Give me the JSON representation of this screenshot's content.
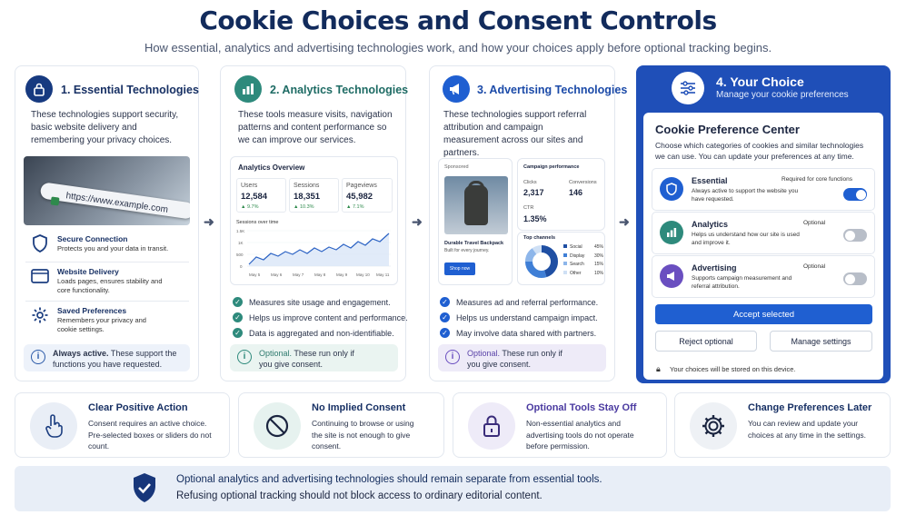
{
  "title": "Cookie Choices and Consent Controls",
  "subtitle": "How essential, analytics and advertising technologies work, and how your choices apply before optional tracking begins.",
  "col1": {
    "heading": "1. Essential Technologies",
    "desc": "These technologies support security, basic website delivery and remembering your privacy choices.",
    "url": "https://www.example.com",
    "features": [
      {
        "title": "Secure Connection",
        "desc": "Protects you and your data in transit."
      },
      {
        "title": "Website Delivery",
        "desc": "Loads pages, ensures stability and core functionality."
      },
      {
        "title": "Saved Preferences",
        "desc": "Remembers your privacy and cookie settings."
      }
    ],
    "info_bold": "Always active.",
    "info_text": " These support the functions you have requested."
  },
  "col2": {
    "heading": "2. Analytics Technologies",
    "desc": "These tools measure visits, navigation patterns and content performance so we can improve our services.",
    "dash_title": "Analytics Overview",
    "metrics": [
      {
        "label": "Users",
        "value": "12,584",
        "delta": "▲ 9.7%"
      },
      {
        "label": "Sessions",
        "value": "18,351",
        "delta": "▲ 10.3%"
      },
      {
        "label": "Pageviews",
        "value": "45,982",
        "delta": "▲ 7.1%"
      }
    ],
    "chart_title": "Sessions over time",
    "yticks": [
      "1.5K",
      "1K",
      "500",
      "0"
    ],
    "xticks": [
      "May 5",
      "May 6",
      "May 7",
      "May 8",
      "May 9",
      "May 10",
      "May 11"
    ],
    "checks": [
      "Measures site usage and engagement.",
      "Helps us improve content and performance.",
      "Data is aggregated and non-identifiable."
    ],
    "info_bold": "Optional.",
    "info_text": " These run only if you give consent."
  },
  "col3": {
    "heading": "3. Advertising Technologies",
    "desc": "These technologies support referral attribution and campaign measurement across our sites and partners.",
    "sponsored": "Sponsored",
    "ad_title": "Durable Travel Backpack",
    "ad_sub": "Built for every journey.",
    "ad_button": "Shop now",
    "perf_title": "Campaign performance",
    "clicks_label": "Clicks",
    "clicks_value": "2,317",
    "conv_label": "Conversions",
    "conv_value": "146",
    "ctr_label": "CTR",
    "ctr_value": "1.35%",
    "channels_title": "Top channels",
    "channels": [
      {
        "name": "Social",
        "pct": "45%",
        "color": "#1f4fa3"
      },
      {
        "name": "Display",
        "pct": "30%",
        "color": "#3f7fd6"
      },
      {
        "name": "Search",
        "pct": "15%",
        "color": "#8db6ea"
      },
      {
        "name": "Other",
        "pct": "10%",
        "color": "#cfe0f5"
      }
    ],
    "checks": [
      "Measures ad and referral performance.",
      "Helps us understand campaign impact.",
      "May involve data shared with partners."
    ],
    "info_bold": "Optional.",
    "info_text": " These run only if you give consent."
  },
  "col4": {
    "heading": "4. Your Choice",
    "sub": "Manage your cookie preferences",
    "center_title": "Cookie Preference Center",
    "center_desc": "Choose which categories of cookies and similar technologies we can use. You can update your preferences at any time.",
    "rows": [
      {
        "title": "Essential",
        "tag": "Required for core functions",
        "desc": "Always active to support the website you have requested.",
        "on": true
      },
      {
        "title": "Analytics",
        "tag": "Optional",
        "desc": "Helps us understand how our site is used and improve it.",
        "on": false
      },
      {
        "title": "Advertising",
        "tag": "Optional",
        "desc": "Supports campaign measurement and referral attribution.",
        "on": false
      }
    ],
    "accept": "Accept selected",
    "reject": "Reject optional",
    "manage": "Manage settings",
    "footer": "Your choices will be stored on this device."
  },
  "bottom": [
    {
      "title": "Clear Positive Action",
      "desc": "Consent requires an active choice. Pre-selected boxes or sliders do not count."
    },
    {
      "title": "No Implied Consent",
      "desc": "Continuing to browse or using the site is not enough to give consent."
    },
    {
      "title": "Optional Tools Stay Off",
      "desc": "Non-essential analytics and advertising tools do not operate before permission."
    },
    {
      "title": "Change Preferences Later",
      "desc": "You can review and update your choices at any time in the settings."
    }
  ],
  "banner": {
    "line1": "Optional analytics and advertising technologies should remain separate from essential tools.",
    "line2": "Refusing optional tracking should not block access to ordinary editorial content."
  },
  "colors": {
    "navy": "#173064",
    "blue": "#1f5fd1",
    "teal": "#2e8a7c",
    "purple": "#6a4fc0"
  }
}
